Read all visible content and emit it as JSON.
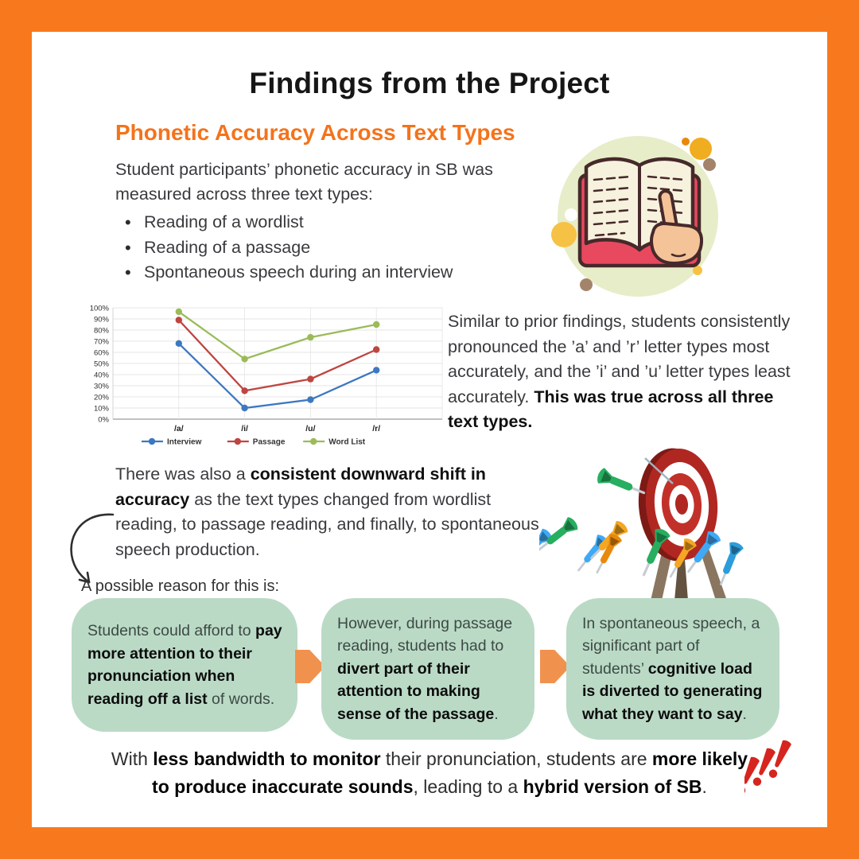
{
  "page": {
    "title": "Findings from the Project",
    "subtitle": "Phonetic Accuracy Across Text Types"
  },
  "intro": {
    "lead": "Student participants’ phonetic accuracy in SB was measured across three text types:",
    "bullets": [
      "Reading of a wordlist",
      "Reading of a passage",
      "Spontaneous speech during an interview"
    ]
  },
  "chart_data": {
    "type": "line",
    "categories": [
      "/a/",
      "/i/",
      "/u/",
      "/r/"
    ],
    "series": [
      {
        "name": "Interview",
        "color": "#3D78C0",
        "values": [
          68,
          10,
          17.5,
          44
        ]
      },
      {
        "name": "Passage",
        "color": "#BE4540",
        "values": [
          89,
          25.5,
          36,
          62.5
        ]
      },
      {
        "name": "Word List",
        "color": "#9BBB59",
        "values": [
          96.5,
          54,
          73.5,
          85
        ]
      }
    ],
    "ylim": [
      0,
      100
    ],
    "ytick_step": 10,
    "ytick_suffix": "%",
    "grid": true,
    "legend_position": "bottom"
  },
  "finding_right": {
    "segments": [
      {
        "t": "Similar to prior findings, students consistently pronounced the ’a’ and ’r’ letter types most accurately, and the ’i’ and ’u’ letter types least accurately. ",
        "b": false
      },
      {
        "t": "This was true across all three text types.",
        "b": true
      }
    ]
  },
  "finding_left": {
    "segments": [
      {
        "t": "There was also a ",
        "b": false
      },
      {
        "t": "consistent downward shift in accuracy",
        "b": true
      },
      {
        "t": " as the text types changed from wordlist reading, to passage reading, and finally, to spontaneous speech production.",
        "b": false
      }
    ]
  },
  "reason_label": "A possible reason for this is:",
  "boxes": [
    {
      "segments": [
        {
          "t": "Students could afford to ",
          "b": false
        },
        {
          "t": "pay more attention to their pronunciation when reading off a list",
          "b": true
        },
        {
          "t": " of words.",
          "b": false
        }
      ]
    },
    {
      "segments": [
        {
          "t": "However, during passage reading, students had to ",
          "b": false
        },
        {
          "t": "divert part of their attention to making sense of the passage",
          "b": true
        },
        {
          "t": ".",
          "b": false
        }
      ]
    },
    {
      "segments": [
        {
          "t": "In spontaneous speech, a significant part of students’ ",
          "b": false
        },
        {
          "t": "cognitive load is diverted to generating what they want to say",
          "b": true
        },
        {
          "t": ".",
          "b": false
        }
      ]
    }
  ],
  "conclusion": {
    "segments": [
      {
        "t": "With ",
        "b": false
      },
      {
        "t": "less bandwidth to monitor",
        "b": true
      },
      {
        "t": " their pronunciation, students are ",
        "b": false
      },
      {
        "t": "more likely to produce inaccurate sounds",
        "b": true
      },
      {
        "t": ", leading to a ",
        "b": false
      },
      {
        "t": "hybrid version of SB",
        "b": true
      },
      {
        "t": ".",
        "b": false
      }
    ]
  },
  "colors": {
    "frame": "#F8791D",
    "subtitle": "#F4731B",
    "box_green": "#BADAC6",
    "flow_arrow": "#F0924E",
    "exclaim_red": "#D6251F"
  },
  "icons": {
    "book": "open-book-with-pointing-hand",
    "dartboard": "target-with-scattered-darts",
    "curve_arrow": "hand-drawn-curved-arrow",
    "exclaim": "triple-exclamation-marks"
  }
}
